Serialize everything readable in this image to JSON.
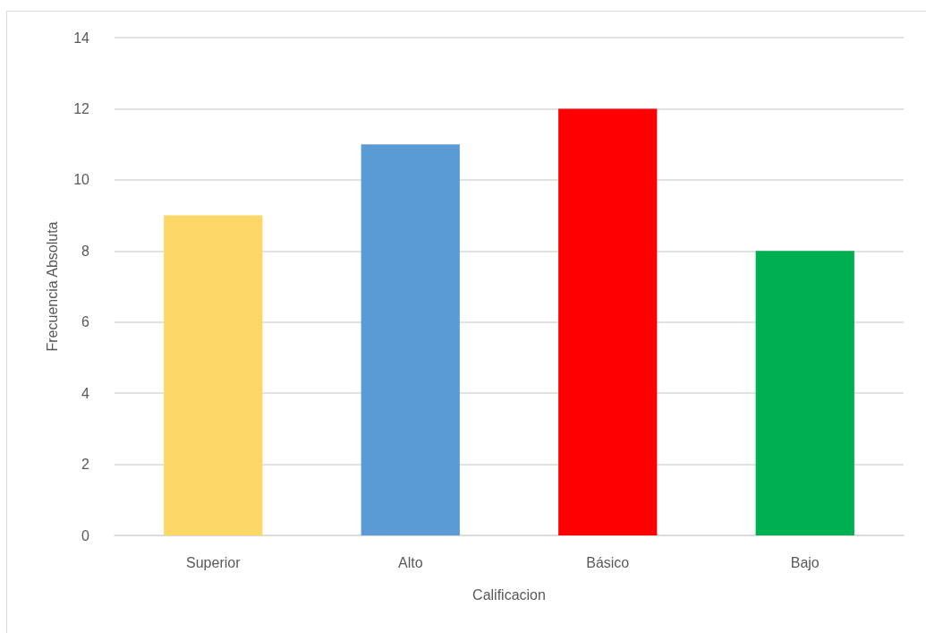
{
  "chart_data": {
    "type": "bar",
    "xlabel": "Calificacion",
    "ylabel": "Frecuencia Absoluta",
    "categories": [
      "Superior",
      "Alto",
      "Básico",
      "Bajo"
    ],
    "values": [
      9,
      11,
      12,
      8
    ],
    "colors": [
      "#fdd766",
      "#5b9bd5",
      "#ff0000",
      "#00b050"
    ],
    "ylim": [
      0,
      14
    ],
    "yticks": [
      0,
      2,
      4,
      6,
      8,
      10,
      12,
      14
    ],
    "grid": "y"
  }
}
